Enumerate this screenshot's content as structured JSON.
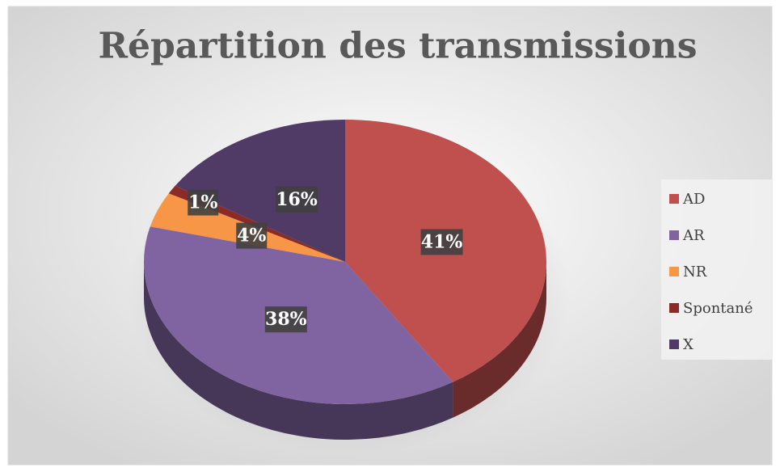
{
  "chart_data": {
    "type": "pie",
    "title": "Répartition des transmissions",
    "categories": [
      "AD",
      "AR",
      "NR",
      "Spontané",
      "X"
    ],
    "values": [
      41,
      38,
      4,
      1,
      16
    ],
    "value_labels": [
      "41%",
      "38%",
      "4%",
      "1%",
      "16%"
    ],
    "colors": [
      "#c0504d",
      "#8064a2",
      "#f79646",
      "#8a2b28",
      "#4f3b66"
    ],
    "legend": "right"
  }
}
